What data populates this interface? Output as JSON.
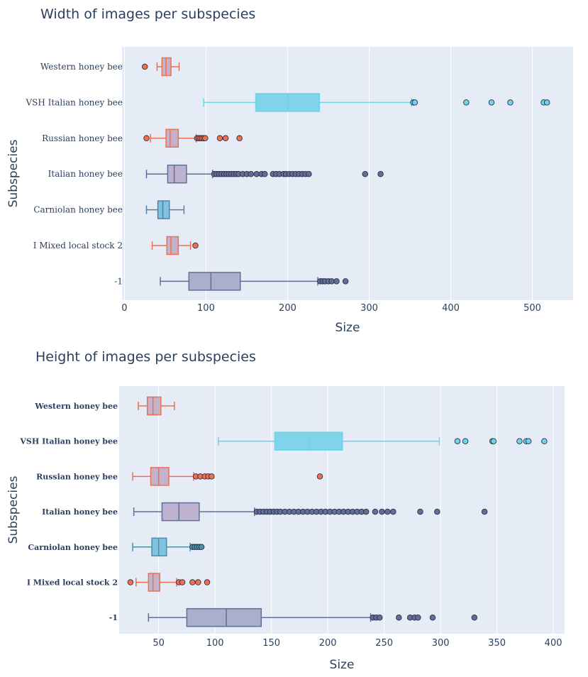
{
  "chart_data": [
    {
      "type": "box",
      "title": "Width of images per subspecies",
      "xlabel": "Size",
      "ylabel": "Subspecies",
      "xlim": [
        -3,
        550
      ],
      "xticks": [
        0,
        100,
        200,
        300,
        400,
        500
      ],
      "grid": true,
      "categories": [
        "Western honey bee",
        "VSH Italian honey bee",
        "Russian honey bee",
        "Italian honey bee",
        "Carniolan honey bee",
        "I Mixed local stock 2",
        "-1"
      ],
      "series": [
        {
          "category": "Western honey bee",
          "color": "#ef6f4f",
          "fill": "#c3b2c9",
          "min": 40,
          "q1": 46,
          "median": 51,
          "q3": 57,
          "max": 67,
          "outliers": [
            25
          ]
        },
        {
          "category": "VSH Italian honey bee",
          "color": "#6fd4e8",
          "fill": "#7fd3ea",
          "min": 97,
          "q1": 161,
          "median": 200,
          "q3": 239,
          "max": 352,
          "outliers": [
            354,
            356,
            419,
            450,
            473,
            514,
            518
          ]
        },
        {
          "category": "Russian honey bee",
          "color": "#ef6f4f",
          "fill": "#c3b2c9",
          "min": 32,
          "q1": 51,
          "median": 56,
          "q3": 66,
          "max": 88,
          "outliers": [
            89,
            91,
            93,
            95,
            97,
            99,
            117,
            124,
            141,
            27
          ]
        },
        {
          "category": "Italian honey bee",
          "color": "#636e96",
          "fill": "#bdb2cf",
          "min": 27,
          "q1": 53,
          "median": 61,
          "q3": 76,
          "max": 108,
          "outliers": [
            110,
            113,
            116,
            119,
            122,
            125,
            128,
            131,
            134,
            137,
            140,
            145,
            150,
            155,
            162,
            168,
            172,
            182,
            186,
            190,
            195,
            198,
            202,
            206,
            210,
            214,
            218,
            222,
            226,
            295,
            314
          ]
        },
        {
          "category": "Carniolan honey bee",
          "color": "#5a7fa0",
          "fill": "#7fc3e0",
          "min": 27,
          "q1": 41,
          "median": 47,
          "q3": 55,
          "max": 73,
          "outliers": []
        },
        {
          "category": "I Mixed local stock 2",
          "color": "#ef6f4f",
          "fill": "#c3b2c9",
          "min": 34,
          "q1": 52,
          "median": 57,
          "q3": 66,
          "max": 81,
          "outliers": [
            87
          ]
        },
        {
          "category": "-1",
          "color": "#636e96",
          "fill": "#a9b0cc",
          "min": 44,
          "q1": 79,
          "median": 106,
          "q3": 142,
          "max": 237,
          "outliers": [
            240,
            243,
            246,
            250,
            254,
            260,
            271
          ]
        }
      ]
    },
    {
      "type": "box",
      "title": "Height of images per subspecies",
      "xlabel": "Size",
      "ylabel": "Subspecies",
      "xlim": [
        15,
        410
      ],
      "xticks": [
        50,
        100,
        150,
        200,
        250,
        300,
        350,
        400
      ],
      "grid": true,
      "categories": [
        "Western honey bee",
        "VSH Italian honey bee",
        "Russian honey bee",
        "Italian honey bee",
        "Carniolan honey bee",
        "I Mixed local stock 2",
        "-1"
      ],
      "series": [
        {
          "category": "Western honey bee",
          "color": "#ef6f4f",
          "fill": "#c3b2c9",
          "min": 32,
          "q1": 40,
          "median": 45,
          "q3": 52,
          "max": 64,
          "outliers": []
        },
        {
          "category": "VSH Italian honey bee",
          "color": "#6fd4e8",
          "fill": "#7fd3ea",
          "min": 103,
          "q1": 153,
          "median": 183,
          "q3": 213,
          "max": 299,
          "outliers": [
            315,
            322,
            346,
            347,
            370,
            376,
            378,
            392
          ]
        },
        {
          "category": "Russian honey bee",
          "color": "#ef6f4f",
          "fill": "#c3b2c9",
          "min": 27,
          "q1": 43,
          "median": 50,
          "q3": 59,
          "max": 81,
          "outliers": [
            83,
            87,
            91,
            94,
            97,
            193
          ]
        },
        {
          "category": "Italian honey bee",
          "color": "#636e96",
          "fill": "#bdb2cf",
          "min": 28,
          "q1": 53,
          "median": 68,
          "q3": 86,
          "max": 135,
          "outliers": [
            137,
            140,
            143,
            146,
            149,
            152,
            155,
            158,
            162,
            166,
            170,
            174,
            178,
            182,
            186,
            190,
            194,
            198,
            202,
            206,
            210,
            214,
            218,
            222,
            226,
            230,
            234,
            242,
            248,
            253,
            258,
            282,
            297,
            339
          ]
        },
        {
          "category": "Carniolan honey bee",
          "color": "#4a90a8",
          "fill": "#7fc3e0",
          "min": 27,
          "q1": 44,
          "median": 50,
          "q3": 57,
          "max": 78,
          "outliers": [
            80,
            82,
            84,
            86,
            88
          ]
        },
        {
          "category": "I Mixed local stock 2",
          "color": "#ef6f4f",
          "fill": "#c3b2c9",
          "min": 30,
          "q1": 41,
          "median": 45,
          "q3": 51,
          "max": 66,
          "outliers": [
            68,
            71,
            80,
            85,
            93,
            25
          ]
        },
        {
          "category": "-1",
          "color": "#636e96",
          "fill": "#a9b0cc",
          "min": 41,
          "q1": 75,
          "median": 110,
          "q3": 141,
          "max": 238,
          "outliers": [
            240,
            243,
            246,
            263,
            273,
            277,
            280,
            293,
            330
          ]
        }
      ]
    }
  ]
}
